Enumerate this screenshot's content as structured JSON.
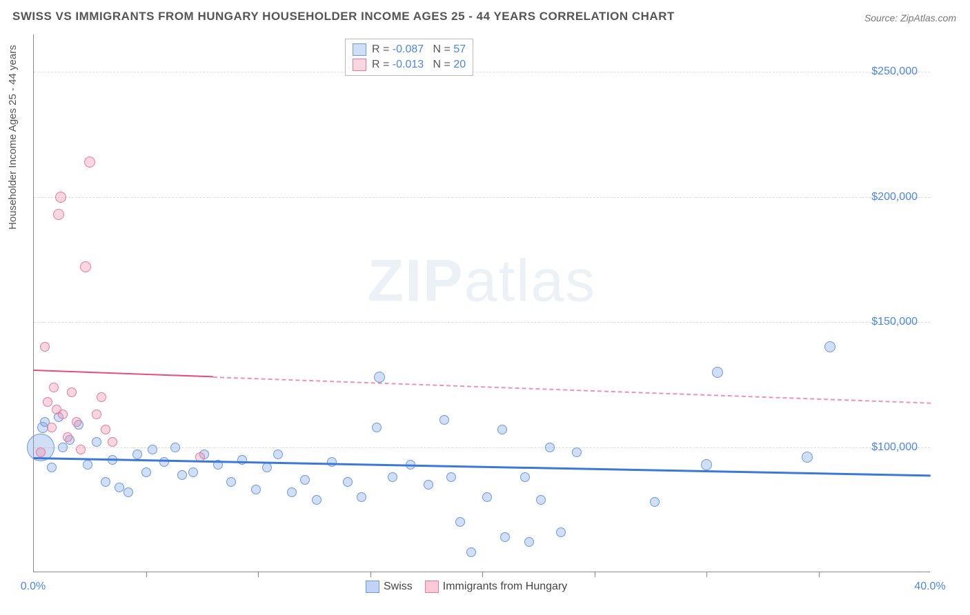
{
  "title": "SWISS VS IMMIGRANTS FROM HUNGARY HOUSEHOLDER INCOME AGES 25 - 44 YEARS CORRELATION CHART",
  "source": "Source: ZipAtlas.com",
  "ylabel": "Householder Income Ages 25 - 44 years",
  "watermark_a": "ZIP",
  "watermark_b": "atlas",
  "chart": {
    "type": "scatter",
    "xlim": [
      0,
      40
    ],
    "ylim": [
      50000,
      265000
    ],
    "x_tick_label_min": "0.0%",
    "x_tick_label_max": "40.0%",
    "x_minor_ticks": [
      5,
      10,
      15,
      20,
      25,
      30,
      35
    ],
    "y_ticks": [
      100000,
      150000,
      200000,
      250000
    ],
    "y_tick_labels": [
      "$100,000",
      "$150,000",
      "$200,000",
      "$250,000"
    ],
    "grid_color": "#dddddd",
    "axis_color": "#888888",
    "background_color": "#ffffff",
    "series": [
      {
        "name": "Swiss",
        "fill": "rgba(120,160,230,0.35)",
        "stroke": "#6a9ae0",
        "R": "-0.087",
        "N": "57",
        "trend": {
          "y_at_x0": 96000,
          "y_at_x40": 89000,
          "color": "#3b78d8",
          "width": 3,
          "dash_after_pct": 100
        },
        "points": [
          {
            "x": 0.3,
            "y": 100000,
            "r": 20
          },
          {
            "x": 0.4,
            "y": 108000,
            "r": 8
          },
          {
            "x": 0.5,
            "y": 110000,
            "r": 7
          },
          {
            "x": 0.8,
            "y": 92000,
            "r": 7
          },
          {
            "x": 1.1,
            "y": 112000,
            "r": 7
          },
          {
            "x": 1.3,
            "y": 100000,
            "r": 7
          },
          {
            "x": 1.6,
            "y": 103000,
            "r": 7
          },
          {
            "x": 2.0,
            "y": 109000,
            "r": 7
          },
          {
            "x": 2.4,
            "y": 93000,
            "r": 7
          },
          {
            "x": 2.8,
            "y": 102000,
            "r": 7
          },
          {
            "x": 3.2,
            "y": 86000,
            "r": 7
          },
          {
            "x": 3.5,
            "y": 95000,
            "r": 7
          },
          {
            "x": 3.8,
            "y": 84000,
            "r": 7
          },
          {
            "x": 4.2,
            "y": 82000,
            "r": 7
          },
          {
            "x": 4.6,
            "y": 97000,
            "r": 7
          },
          {
            "x": 5.0,
            "y": 90000,
            "r": 7
          },
          {
            "x": 5.3,
            "y": 99000,
            "r": 7
          },
          {
            "x": 5.8,
            "y": 94000,
            "r": 7
          },
          {
            "x": 6.3,
            "y": 100000,
            "r": 7
          },
          {
            "x": 6.6,
            "y": 89000,
            "r": 7
          },
          {
            "x": 7.1,
            "y": 90000,
            "r": 7
          },
          {
            "x": 7.6,
            "y": 97000,
            "r": 7
          },
          {
            "x": 8.2,
            "y": 93000,
            "r": 7
          },
          {
            "x": 8.8,
            "y": 86000,
            "r": 7
          },
          {
            "x": 9.3,
            "y": 95000,
            "r": 7
          },
          {
            "x": 9.9,
            "y": 83000,
            "r": 7
          },
          {
            "x": 10.4,
            "y": 92000,
            "r": 7
          },
          {
            "x": 10.9,
            "y": 97000,
            "r": 7
          },
          {
            "x": 11.5,
            "y": 82000,
            "r": 7
          },
          {
            "x": 12.1,
            "y": 87000,
            "r": 7
          },
          {
            "x": 12.6,
            "y": 79000,
            "r": 7
          },
          {
            "x": 13.3,
            "y": 94000,
            "r": 7
          },
          {
            "x": 14.0,
            "y": 86000,
            "r": 7
          },
          {
            "x": 14.6,
            "y": 80000,
            "r": 7
          },
          {
            "x": 15.3,
            "y": 108000,
            "r": 7
          },
          {
            "x": 15.4,
            "y": 128000,
            "r": 8
          },
          {
            "x": 16.0,
            "y": 88000,
            "r": 7
          },
          {
            "x": 16.8,
            "y": 93000,
            "r": 7
          },
          {
            "x": 17.6,
            "y": 85000,
            "r": 7
          },
          {
            "x": 18.3,
            "y": 111000,
            "r": 7
          },
          {
            "x": 18.6,
            "y": 88000,
            "r": 7
          },
          {
            "x": 19.0,
            "y": 70000,
            "r": 7
          },
          {
            "x": 19.5,
            "y": 58000,
            "r": 7
          },
          {
            "x": 20.2,
            "y": 80000,
            "r": 7
          },
          {
            "x": 20.9,
            "y": 107000,
            "r": 7
          },
          {
            "x": 21.0,
            "y": 64000,
            "r": 7
          },
          {
            "x": 21.9,
            "y": 88000,
            "r": 7
          },
          {
            "x": 22.1,
            "y": 62000,
            "r": 7
          },
          {
            "x": 22.6,
            "y": 79000,
            "r": 7
          },
          {
            "x": 23.0,
            "y": 100000,
            "r": 7
          },
          {
            "x": 23.5,
            "y": 66000,
            "r": 7
          },
          {
            "x": 24.2,
            "y": 98000,
            "r": 7
          },
          {
            "x": 27.7,
            "y": 78000,
            "r": 7
          },
          {
            "x": 30.0,
            "y": 93000,
            "r": 8
          },
          {
            "x": 30.5,
            "y": 130000,
            "r": 8
          },
          {
            "x": 34.5,
            "y": 96000,
            "r": 8
          },
          {
            "x": 35.5,
            "y": 140000,
            "r": 8
          }
        ]
      },
      {
        "name": "Immigrants from Hungary",
        "fill": "rgba(240,140,165,0.35)",
        "stroke": "#e77a9a",
        "R": "-0.013",
        "N": "20",
        "trend": {
          "y_at_x0": 131000,
          "y_at_x40": 118000,
          "color": "#e94b7a",
          "width": 2,
          "dash_after_pct": 20
        },
        "points": [
          {
            "x": 0.3,
            "y": 98000,
            "r": 7
          },
          {
            "x": 0.5,
            "y": 140000,
            "r": 7
          },
          {
            "x": 0.6,
            "y": 118000,
            "r": 7
          },
          {
            "x": 0.8,
            "y": 108000,
            "r": 7
          },
          {
            "x": 0.9,
            "y": 124000,
            "r": 7
          },
          {
            "x": 1.0,
            "y": 115000,
            "r": 7
          },
          {
            "x": 1.1,
            "y": 193000,
            "r": 8
          },
          {
            "x": 1.2,
            "y": 200000,
            "r": 8
          },
          {
            "x": 1.3,
            "y": 113000,
            "r": 7
          },
          {
            "x": 1.5,
            "y": 104000,
            "r": 7
          },
          {
            "x": 1.7,
            "y": 122000,
            "r": 7
          },
          {
            "x": 1.9,
            "y": 110000,
            "r": 7
          },
          {
            "x": 2.1,
            "y": 99000,
            "r": 7
          },
          {
            "x": 2.3,
            "y": 172000,
            "r": 8
          },
          {
            "x": 2.5,
            "y": 214000,
            "r": 8
          },
          {
            "x": 2.8,
            "y": 113000,
            "r": 7
          },
          {
            "x": 3.0,
            "y": 120000,
            "r": 7
          },
          {
            "x": 3.2,
            "y": 107000,
            "r": 7
          },
          {
            "x": 3.5,
            "y": 102000,
            "r": 7
          },
          {
            "x": 7.4,
            "y": 96000,
            "r": 7
          }
        ]
      }
    ]
  },
  "legend_bottom": [
    {
      "label": "Swiss",
      "fill": "rgba(120,160,230,0.45)",
      "stroke": "#6a9ae0"
    },
    {
      "label": "Immigrants from Hungary",
      "fill": "rgba(240,140,165,0.45)",
      "stroke": "#e77a9a"
    }
  ]
}
